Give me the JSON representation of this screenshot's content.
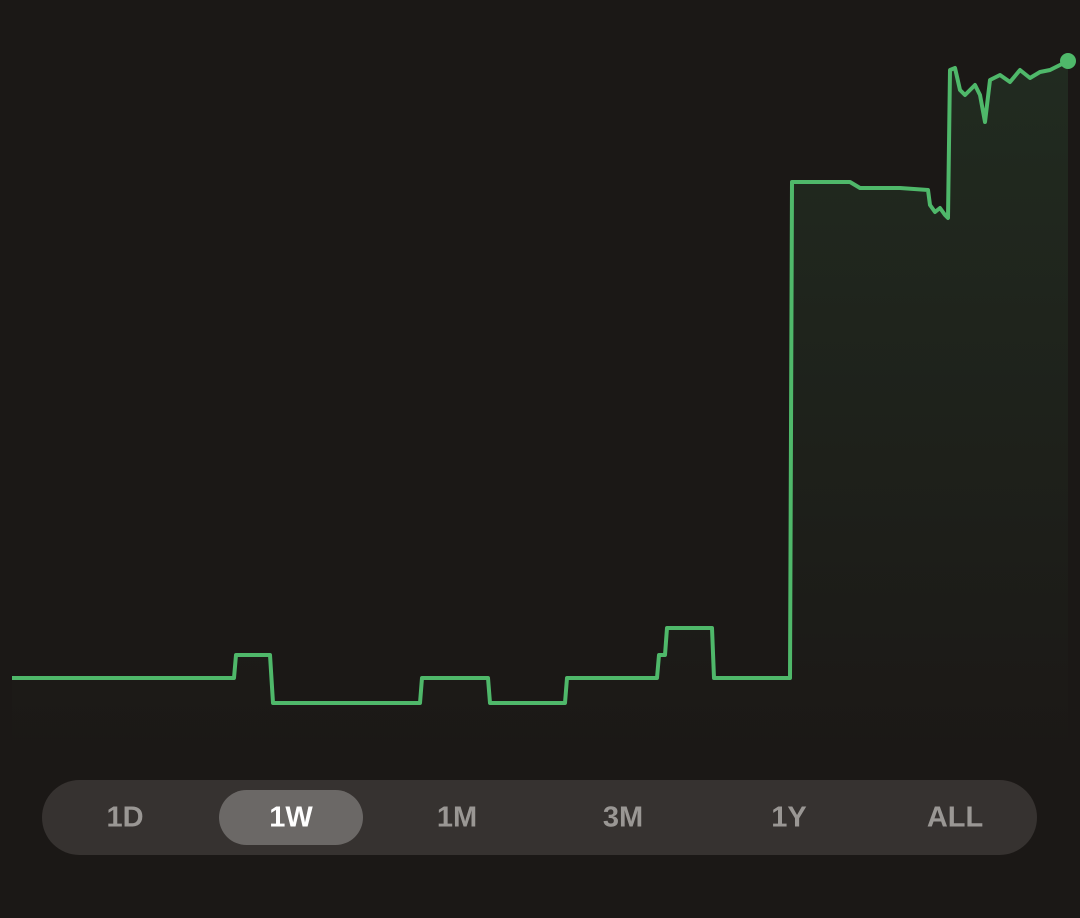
{
  "chart_data": {
    "type": "line",
    "color": "#4fb86a",
    "x": [
      12,
      234,
      236,
      270,
      273,
      420,
      422,
      488,
      490,
      565,
      567,
      657,
      659,
      665,
      667,
      712,
      714,
      790,
      792,
      850,
      860,
      900,
      928,
      930,
      935,
      940,
      945,
      948,
      950,
      955,
      960,
      965,
      975,
      980,
      985,
      990,
      1000,
      1010,
      1020,
      1030,
      1040,
      1050,
      1060,
      1068
    ],
    "values": [
      240,
      240,
      263,
      263,
      215,
      215,
      240,
      240,
      215,
      215,
      240,
      240,
      263,
      263,
      290,
      290,
      240,
      240,
      736,
      736,
      730,
      730,
      728,
      713,
      706,
      710,
      703,
      700,
      848,
      850,
      828,
      823,
      833,
      823,
      796,
      838,
      843,
      836,
      848,
      840,
      846,
      848,
      853,
      857
    ],
    "xlim": [
      12,
      1068
    ],
    "ylim": [
      0,
      918
    ]
  },
  "range_selector": {
    "options": [
      "1D",
      "1W",
      "1M",
      "3M",
      "1Y",
      "ALL"
    ],
    "selected_index": 1
  }
}
